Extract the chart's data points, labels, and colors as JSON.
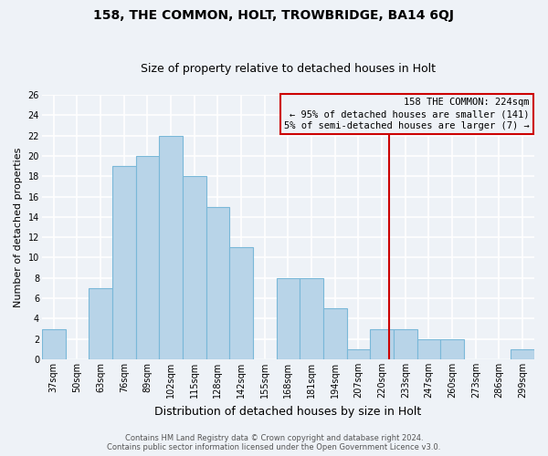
{
  "title": "158, THE COMMON, HOLT, TROWBRIDGE, BA14 6QJ",
  "subtitle": "Size of property relative to detached houses in Holt",
  "xlabel": "Distribution of detached houses by size in Holt",
  "ylabel": "Number of detached properties",
  "categories": [
    "37sqm",
    "50sqm",
    "63sqm",
    "76sqm",
    "89sqm",
    "102sqm",
    "115sqm",
    "128sqm",
    "142sqm",
    "155sqm",
    "168sqm",
    "181sqm",
    "194sqm",
    "207sqm",
    "220sqm",
    "233sqm",
    "247sqm",
    "260sqm",
    "273sqm",
    "286sqm",
    "299sqm"
  ],
  "values": [
    3,
    0,
    7,
    19,
    20,
    22,
    18,
    15,
    11,
    0,
    8,
    8,
    5,
    1,
    3,
    3,
    2,
    2,
    0,
    0,
    1
  ],
  "bar_color": "#b8d4e8",
  "bar_edge_color": "#7ab8d8",
  "background_color": "#eef2f7",
  "grid_color": "#d0dce8",
  "annotation_line_color": "#cc0000",
  "annotation_box_text": "158 THE COMMON: 224sqm\n← 95% of detached houses are smaller (141)\n5% of semi-detached houses are larger (7) →",
  "annotation_box_edge_color": "#cc0000",
  "ylim": [
    0,
    26
  ],
  "yticks": [
    0,
    2,
    4,
    6,
    8,
    10,
    12,
    14,
    16,
    18,
    20,
    22,
    24,
    26
  ],
  "footer_line1": "Contains HM Land Registry data © Crown copyright and database right 2024.",
  "footer_line2": "Contains public sector information licensed under the Open Government Licence v3.0.",
  "title_fontsize": 10,
  "subtitle_fontsize": 9,
  "xlabel_fontsize": 9,
  "ylabel_fontsize": 8,
  "tick_fontsize": 7,
  "footer_fontsize": 6,
  "annotation_fontsize": 7.5
}
